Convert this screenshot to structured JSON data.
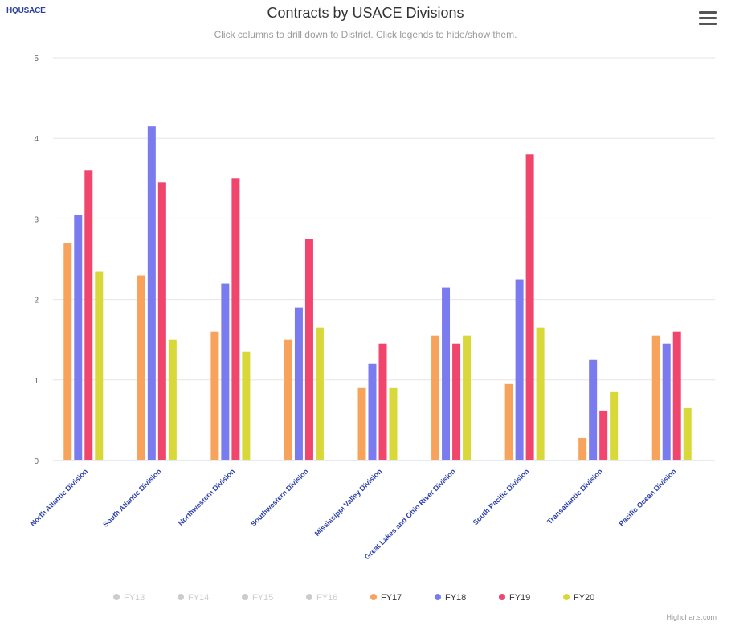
{
  "header": {
    "logo_text": "HQUSACE",
    "title": "Contracts by USACE Divisions",
    "subtitle": "Click columns to drill down to District. Click legends to hide/show them."
  },
  "menu": {
    "icon": "hamburger-menu-icon"
  },
  "credits": "Highcharts.com",
  "chart_data": {
    "type": "bar",
    "title": "Contracts by USACE Divisions",
    "subtitle": "Click columns to drill down to District. Click legends to hide/show them.",
    "xlabel": "",
    "ylabel": "",
    "ylim": [
      0,
      5
    ],
    "yticks": [
      0,
      1,
      2,
      3,
      4,
      5
    ],
    "grid": true,
    "legend_position": "bottom-center",
    "categories": [
      "North Atlantic Division",
      "South Atlantic Division",
      "Northwestern Division",
      "Southwestern Division",
      "Mississippi Valley Division",
      "Great Lakes and Ohio River Division",
      "South Pacific Division",
      "Transatlantic Division",
      "Pacific Ocean Division"
    ],
    "series": [
      {
        "name": "FY17",
        "color": "#f7a35c",
        "values": [
          2.7,
          2.3,
          1.6,
          1.5,
          0.9,
          1.55,
          0.95,
          0.28,
          1.55
        ]
      },
      {
        "name": "FY18",
        "color": "#7b7bf0",
        "values": [
          3.05,
          4.15,
          2.2,
          1.9,
          1.2,
          2.15,
          2.25,
          1.25,
          1.45
        ]
      },
      {
        "name": "FY19",
        "color": "#f0466e",
        "values": [
          3.6,
          3.45,
          3.5,
          2.75,
          1.45,
          1.45,
          3.8,
          0.62,
          1.6
        ]
      },
      {
        "name": "FY20",
        "color": "#d8d83a",
        "values": [
          2.35,
          1.5,
          1.35,
          1.65,
          0.9,
          1.55,
          1.65,
          0.85,
          0.65
        ]
      }
    ],
    "hidden_series": [
      {
        "name": "FY13",
        "color": "#cccccc"
      },
      {
        "name": "FY14",
        "color": "#cccccc"
      },
      {
        "name": "FY15",
        "color": "#cccccc"
      },
      {
        "name": "FY16",
        "color": "#cccccc"
      }
    ]
  }
}
